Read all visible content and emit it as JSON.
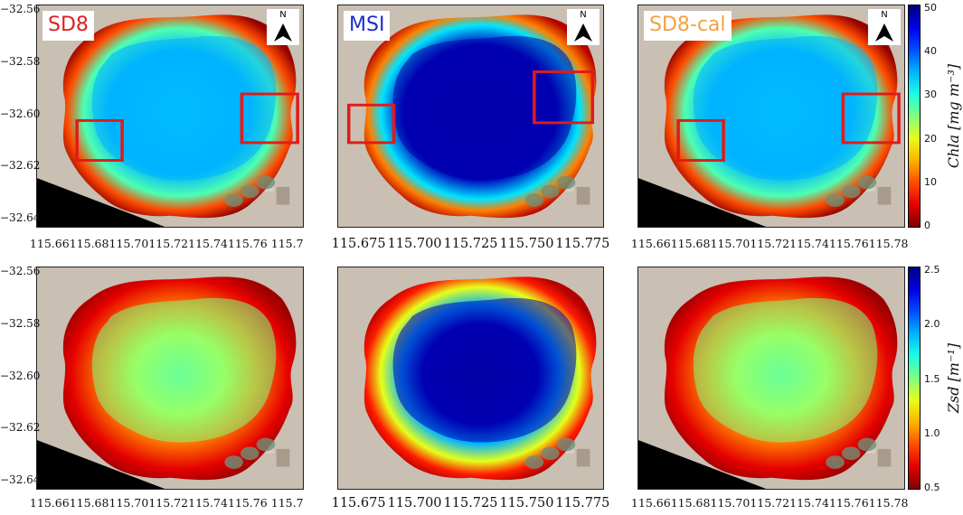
{
  "chart_data": {
    "type": "heatmap",
    "panels": [
      {
        "id": "sd8-chla",
        "row": "chla",
        "label": "SD8",
        "label_color": "#e02020",
        "show_north": true,
        "x_ticks": [
          "115.66",
          "115.68",
          "115.70",
          "115.72",
          "115.74",
          "115.76",
          "115.7"
        ],
        "y_ticks": [
          "−32.56",
          "−32.58",
          "−32.60",
          "−32.62",
          "−32.64"
        ],
        "boxes": 2
      },
      {
        "id": "msi-chla",
        "row": "chla",
        "label": "MSI",
        "label_color": "#1a2ecc",
        "show_north": true,
        "x_ticks": [
          "115.675",
          "115.700",
          "115.725",
          "115.750",
          "115.775"
        ],
        "y_ticks": [],
        "boxes": 2
      },
      {
        "id": "sd8cal-chla",
        "row": "chla",
        "label": "SD8-cal",
        "label_color": "#f5a142",
        "show_north": true,
        "x_ticks": [
          "115.66",
          "115.68",
          "115.70",
          "115.72",
          "115.74",
          "115.76",
          "115.78"
        ],
        "y_ticks": [],
        "boxes": 2
      },
      {
        "id": "sd8-zsd",
        "row": "zsd",
        "label": "",
        "show_north": false,
        "x_ticks": [
          "115.66",
          "115.68",
          "115.70",
          "115.72",
          "115.74",
          "115.76",
          "115.7"
        ],
        "y_ticks": [
          "−32.56",
          "−32.58",
          "−32.60",
          "−32.62",
          "−32.64"
        ],
        "boxes": 0
      },
      {
        "id": "msi-zsd",
        "row": "zsd",
        "label": "",
        "show_north": false,
        "x_ticks": [
          "115.675",
          "115.700",
          "115.725",
          "115.750",
          "115.775"
        ],
        "y_ticks": [],
        "boxes": 0
      },
      {
        "id": "sd8cal-zsd",
        "row": "zsd",
        "label": "",
        "show_north": false,
        "x_ticks": [
          "115.66",
          "115.68",
          "115.70",
          "115.72",
          "115.74",
          "115.76",
          "115.78"
        ],
        "y_ticks": [],
        "boxes": 0
      }
    ],
    "colorbars": [
      {
        "id": "chla",
        "title": "Chla [mg m⁻³]",
        "ticks": [
          "50",
          "40",
          "30",
          "20",
          "10",
          "0"
        ],
        "range": [
          0,
          50
        ]
      },
      {
        "id": "zsd",
        "title": "Zsd [m⁻¹]",
        "ticks": [
          "2.5",
          "2.0",
          "1.5",
          "1.0",
          "0.5"
        ],
        "range": [
          0.2,
          2.5
        ]
      }
    ],
    "colormap": "jet",
    "north_symbol": "N"
  }
}
